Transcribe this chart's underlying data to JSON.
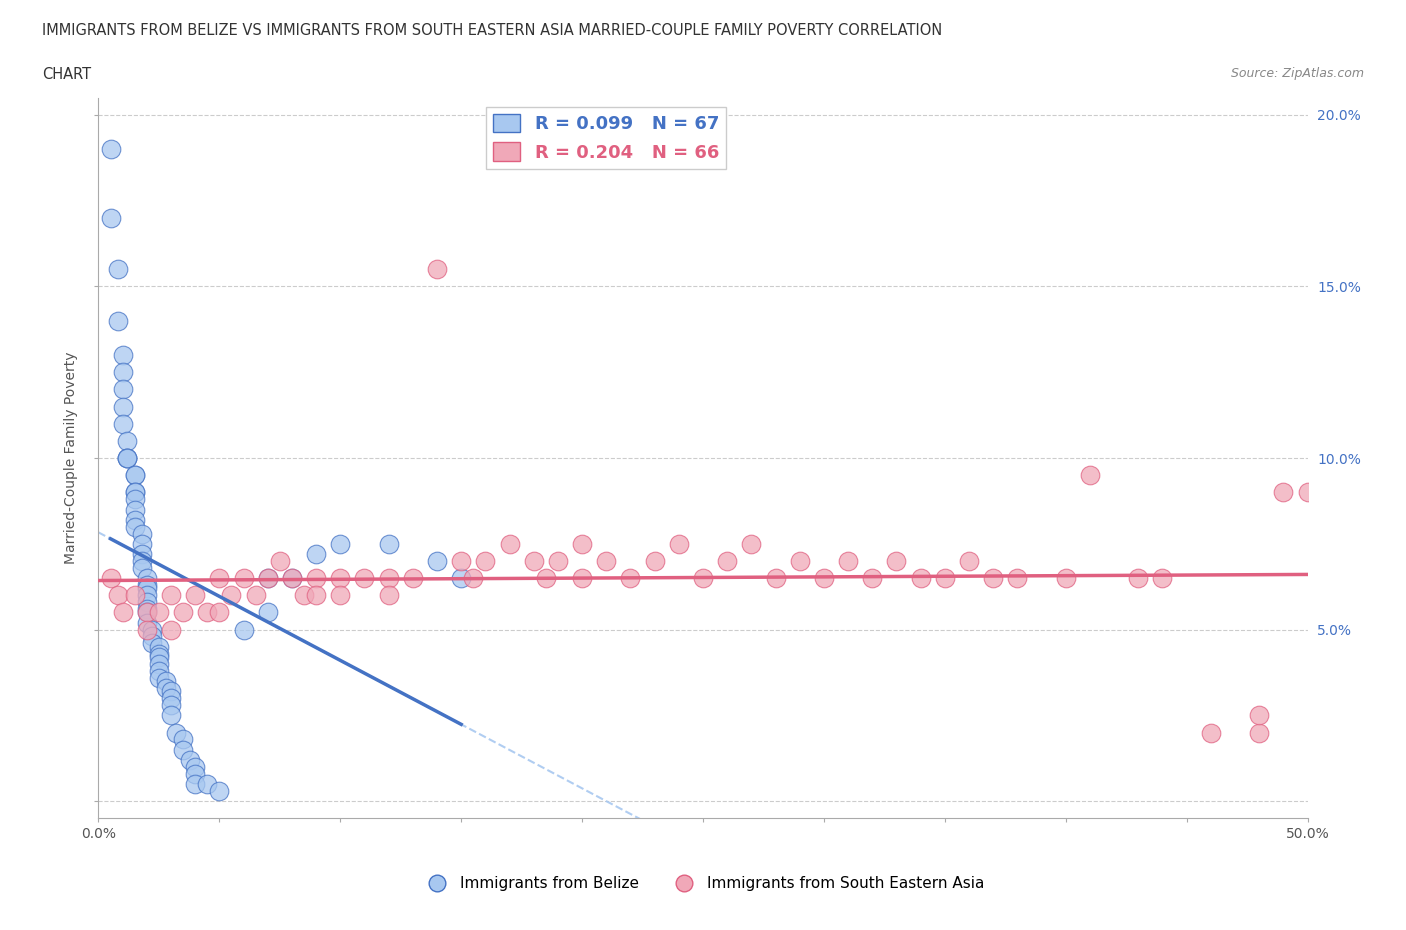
{
  "title_line1": "IMMIGRANTS FROM BELIZE VS IMMIGRANTS FROM SOUTH EASTERN ASIA MARRIED-COUPLE FAMILY POVERTY CORRELATION",
  "title_line2": "CHART",
  "source_text": "Source: ZipAtlas.com",
  "ylabel": "Married-Couple Family Poverty",
  "legend_label1": "Immigrants from Belize",
  "legend_label2": "Immigrants from South Eastern Asia",
  "r1": 0.099,
  "n1": 67,
  "r2": 0.204,
  "n2": 66,
  "color_belize": "#a8c8f0",
  "color_sea": "#f0a8b8",
  "line_color_belize": "#4472c4",
  "line_color_sea": "#e06080",
  "dashed_color": "#a8c8f0",
  "xlim": [
    0.0,
    0.5
  ],
  "ylim": [
    -0.005,
    0.205
  ],
  "xticks": [
    0.0,
    0.05,
    0.1,
    0.15,
    0.2,
    0.25,
    0.3,
    0.35,
    0.4,
    0.45,
    0.5
  ],
  "yticks": [
    0.0,
    0.05,
    0.1,
    0.15,
    0.2
  ],
  "background_color": "#ffffff",
  "grid_color": "#cccccc",
  "belize_x": [
    0.005,
    0.005,
    0.008,
    0.008,
    0.01,
    0.01,
    0.01,
    0.01,
    0.01,
    0.012,
    0.012,
    0.012,
    0.012,
    0.015,
    0.015,
    0.015,
    0.015,
    0.015,
    0.015,
    0.015,
    0.015,
    0.018,
    0.018,
    0.018,
    0.018,
    0.018,
    0.02,
    0.02,
    0.02,
    0.02,
    0.02,
    0.02,
    0.02,
    0.02,
    0.022,
    0.022,
    0.022,
    0.025,
    0.025,
    0.025,
    0.025,
    0.025,
    0.025,
    0.028,
    0.028,
    0.03,
    0.03,
    0.03,
    0.03,
    0.032,
    0.035,
    0.035,
    0.038,
    0.04,
    0.04,
    0.04,
    0.045,
    0.05,
    0.06,
    0.07,
    0.07,
    0.08,
    0.09,
    0.1,
    0.12,
    0.14,
    0.15
  ],
  "belize_y": [
    0.19,
    0.17,
    0.155,
    0.14,
    0.13,
    0.125,
    0.12,
    0.115,
    0.11,
    0.105,
    0.1,
    0.1,
    0.1,
    0.095,
    0.095,
    0.09,
    0.09,
    0.088,
    0.085,
    0.082,
    0.08,
    0.078,
    0.075,
    0.072,
    0.07,
    0.068,
    0.065,
    0.063,
    0.062,
    0.06,
    0.058,
    0.056,
    0.055,
    0.052,
    0.05,
    0.048,
    0.046,
    0.045,
    0.043,
    0.042,
    0.04,
    0.038,
    0.036,
    0.035,
    0.033,
    0.032,
    0.03,
    0.028,
    0.025,
    0.02,
    0.018,
    0.015,
    0.012,
    0.01,
    0.008,
    0.005,
    0.005,
    0.003,
    0.05,
    0.055,
    0.065,
    0.065,
    0.072,
    0.075,
    0.075,
    0.07,
    0.065
  ],
  "sea_x": [
    0.005,
    0.008,
    0.01,
    0.015,
    0.02,
    0.02,
    0.025,
    0.03,
    0.03,
    0.035,
    0.04,
    0.045,
    0.05,
    0.05,
    0.055,
    0.06,
    0.065,
    0.07,
    0.075,
    0.08,
    0.085,
    0.09,
    0.09,
    0.1,
    0.1,
    0.11,
    0.12,
    0.12,
    0.13,
    0.14,
    0.15,
    0.155,
    0.16,
    0.17,
    0.18,
    0.185,
    0.19,
    0.2,
    0.2,
    0.21,
    0.22,
    0.23,
    0.24,
    0.25,
    0.26,
    0.27,
    0.28,
    0.29,
    0.3,
    0.31,
    0.32,
    0.33,
    0.34,
    0.35,
    0.36,
    0.37,
    0.38,
    0.4,
    0.41,
    0.43,
    0.44,
    0.46,
    0.48,
    0.48,
    0.49,
    0.5
  ],
  "sea_y": [
    0.065,
    0.06,
    0.055,
    0.06,
    0.055,
    0.05,
    0.055,
    0.06,
    0.05,
    0.055,
    0.06,
    0.055,
    0.065,
    0.055,
    0.06,
    0.065,
    0.06,
    0.065,
    0.07,
    0.065,
    0.06,
    0.065,
    0.06,
    0.065,
    0.06,
    0.065,
    0.065,
    0.06,
    0.065,
    0.155,
    0.07,
    0.065,
    0.07,
    0.075,
    0.07,
    0.065,
    0.07,
    0.075,
    0.065,
    0.07,
    0.065,
    0.07,
    0.075,
    0.065,
    0.07,
    0.075,
    0.065,
    0.07,
    0.065,
    0.07,
    0.065,
    0.07,
    0.065,
    0.065,
    0.07,
    0.065,
    0.065,
    0.065,
    0.095,
    0.065,
    0.065,
    0.02,
    0.02,
    0.025,
    0.09,
    0.09
  ]
}
